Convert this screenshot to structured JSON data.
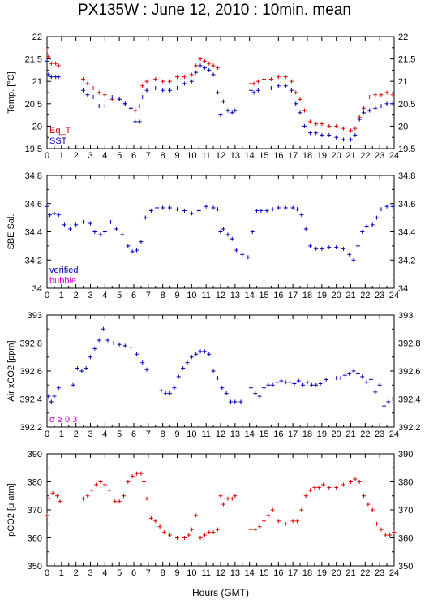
{
  "title": "PX135W : June 12, 2010 : 10min. mean",
  "xlabel": "Hours (GMT)",
  "colors": {
    "red": "#dd0000",
    "blue": "#0000bb",
    "magenta": "#cc00cc",
    "frame": "#000000"
  },
  "chart_data": [
    {
      "type": "scatter",
      "ylabel": "Temp. [°C]",
      "xlim": [
        0,
        24
      ],
      "xticks": [
        "0",
        "1",
        "2",
        "3",
        "4",
        "5",
        "6",
        "7",
        "8",
        "9",
        "10",
        "11",
        "12",
        "13",
        "14",
        "15",
        "16",
        "17",
        "18",
        "19",
        "20",
        "21",
        "22",
        "23",
        "24"
      ],
      "ylim": [
        19.5,
        22
      ],
      "yticks": [
        "19.5",
        "20",
        "20.5",
        "21",
        "21.5",
        "22"
      ],
      "legend": [
        {
          "label": "Eq_T",
          "color": "#dd0000"
        },
        {
          "label": "SST",
          "color": "#0000bb"
        }
      ],
      "series": [
        {
          "name": "Eq_T",
          "color": "#dd0000",
          "x": [
            0.0,
            0.1,
            0.3,
            0.6,
            0.8,
            2.5,
            2.8,
            3.2,
            3.6,
            4.0,
            4.5,
            5.0,
            5.4,
            5.8,
            6.1,
            6.4,
            6.6,
            6.9,
            7.5,
            8.0,
            8.5,
            9.0,
            9.5,
            10.0,
            10.3,
            10.6,
            10.9,
            11.2,
            11.5,
            11.8,
            14.1,
            14.3,
            14.6,
            15.0,
            15.5,
            16.0,
            16.5,
            16.9,
            17.2,
            17.5,
            17.8,
            18.2,
            18.6,
            19.0,
            19.5,
            20.0,
            20.5,
            21.0,
            21.3,
            21.6,
            21.9,
            22.3,
            22.7,
            23.1,
            23.5,
            23.9
          ],
          "y": [
            21.7,
            21.55,
            21.4,
            21.4,
            21.35,
            21.05,
            20.95,
            20.85,
            20.75,
            20.7,
            20.6,
            20.6,
            20.5,
            20.4,
            20.35,
            20.45,
            20.9,
            21.0,
            21.05,
            21.0,
            21.0,
            21.1,
            21.1,
            21.15,
            21.35,
            21.5,
            21.45,
            21.4,
            21.35,
            21.3,
            20.95,
            20.95,
            21.0,
            21.05,
            21.05,
            21.1,
            21.1,
            21.0,
            20.75,
            20.6,
            20.35,
            20.1,
            20.05,
            20.05,
            20.0,
            20.0,
            19.95,
            19.9,
            19.95,
            20.2,
            20.4,
            20.65,
            20.7,
            20.7,
            20.75,
            20.7
          ]
        },
        {
          "name": "SST",
          "color": "#0000bb",
          "x": [
            0.0,
            0.1,
            0.3,
            0.6,
            0.8,
            2.5,
            2.8,
            3.2,
            3.6,
            4.0,
            4.5,
            5.0,
            5.4,
            5.8,
            6.1,
            6.4,
            6.6,
            6.9,
            7.5,
            8.0,
            8.5,
            9.0,
            9.5,
            10.0,
            10.3,
            10.6,
            10.9,
            11.2,
            11.5,
            11.8,
            12.0,
            12.2,
            12.5,
            12.8,
            13.0,
            14.1,
            14.3,
            14.6,
            15.0,
            15.5,
            16.0,
            16.5,
            16.9,
            17.2,
            17.5,
            17.8,
            18.2,
            18.6,
            19.0,
            19.5,
            20.0,
            20.5,
            21.0,
            21.3,
            21.6,
            21.9,
            22.3,
            22.7,
            23.1,
            23.5,
            23.9
          ],
          "y": [
            21.45,
            21.15,
            21.1,
            21.1,
            21.1,
            20.8,
            20.7,
            20.65,
            20.45,
            20.45,
            20.65,
            20.6,
            20.5,
            20.4,
            20.1,
            20.1,
            20.65,
            20.8,
            20.85,
            20.8,
            20.8,
            20.85,
            20.95,
            21.0,
            21.2,
            21.35,
            21.3,
            21.25,
            21.15,
            20.75,
            20.25,
            20.55,
            20.35,
            20.3,
            20.35,
            20.8,
            20.75,
            20.8,
            20.85,
            20.85,
            20.9,
            20.9,
            20.8,
            20.5,
            20.3,
            20.0,
            19.85,
            19.85,
            19.8,
            19.8,
            19.75,
            19.7,
            19.7,
            19.8,
            20.15,
            20.3,
            20.35,
            20.4,
            20.45,
            20.5,
            20.5
          ]
        }
      ]
    },
    {
      "type": "scatter",
      "ylabel": "SBE Sal.",
      "xlim": [
        0,
        24
      ],
      "xticks": [
        "0",
        "1",
        "2",
        "3",
        "4",
        "5",
        "6",
        "7",
        "8",
        "9",
        "10",
        "11",
        "12",
        "13",
        "14",
        "15",
        "16",
        "17",
        "18",
        "19",
        "20",
        "21",
        "22",
        "23",
        "24"
      ],
      "ylim": [
        34,
        34.8
      ],
      "yticks": [
        "34",
        "34.2",
        "34.4",
        "34.6",
        "34.8"
      ],
      "legend": [
        {
          "label": "verified",
          "color": "#0000bb"
        },
        {
          "label": "bubble",
          "color": "#cc00cc"
        }
      ],
      "series": [
        {
          "name": "verified",
          "color": "#0000bb",
          "x": [
            0.0,
            0.2,
            0.5,
            0.8,
            1.2,
            1.6,
            2.0,
            2.5,
            3.0,
            3.3,
            3.7,
            4.0,
            4.4,
            4.8,
            5.2,
            5.6,
            5.9,
            6.2,
            6.5,
            6.8,
            7.2,
            7.6,
            8.0,
            8.5,
            9.0,
            9.5,
            10.0,
            10.5,
            11.0,
            11.5,
            11.8,
            12.0,
            12.2,
            12.5,
            12.8,
            13.1,
            13.5,
            13.9,
            14.2,
            14.5,
            14.8,
            15.2,
            15.6,
            16.0,
            16.5,
            17.0,
            17.3,
            17.6,
            17.9,
            18.2,
            18.6,
            19.0,
            19.5,
            20.0,
            20.5,
            20.9,
            21.2,
            21.5,
            21.8,
            22.1,
            22.5,
            22.8,
            23.1,
            23.5,
            23.9
          ],
          "y": [
            34.58,
            34.52,
            34.53,
            34.52,
            34.45,
            34.42,
            34.45,
            34.47,
            34.46,
            34.4,
            34.38,
            34.4,
            34.47,
            34.42,
            34.38,
            34.3,
            34.26,
            34.27,
            34.33,
            34.5,
            34.55,
            34.57,
            34.57,
            34.57,
            34.56,
            34.55,
            34.53,
            34.55,
            34.58,
            34.57,
            34.56,
            34.4,
            34.42,
            34.38,
            34.35,
            34.27,
            34.24,
            34.22,
            34.4,
            34.55,
            34.55,
            34.55,
            34.56,
            34.57,
            34.57,
            34.57,
            34.56,
            34.52,
            34.42,
            34.3,
            34.28,
            34.28,
            34.29,
            34.29,
            34.28,
            34.24,
            34.2,
            34.3,
            34.4,
            34.44,
            34.45,
            34.5,
            34.56,
            34.58,
            34.58
          ]
        }
      ]
    },
    {
      "type": "scatter",
      "ylabel": "Air xCO2 [ppm]",
      "xlim": [
        0,
        24
      ],
      "xticks": [
        "0",
        "1",
        "2",
        "3",
        "4",
        "5",
        "6",
        "7",
        "8",
        "9",
        "10",
        "11",
        "12",
        "13",
        "14",
        "15",
        "16",
        "17",
        "18",
        "19",
        "20",
        "21",
        "22",
        "23",
        "24"
      ],
      "ylim": [
        392.2,
        393
      ],
      "yticks": [
        "392.2",
        "392.4",
        "392.6",
        "392.8",
        "393"
      ],
      "legend": [
        {
          "label": "σ ≥ 0.3",
          "color": "#cc00cc"
        }
      ],
      "series": [
        {
          "name": "",
          "color": "#0000bb",
          "x": [
            0.1,
            0.3,
            0.5,
            0.8,
            1.8,
            2.1,
            2.4,
            2.7,
            3.0,
            3.3,
            3.6,
            3.9,
            4.2,
            4.6,
            5.0,
            5.4,
            5.8,
            6.2,
            6.6,
            6.9,
            7.9,
            8.2,
            8.5,
            8.8,
            9.1,
            9.4,
            9.7,
            10.0,
            10.3,
            10.6,
            10.9,
            11.2,
            11.5,
            11.8,
            12.1,
            12.4,
            12.7,
            13.0,
            13.4,
            14.1,
            14.4,
            14.7,
            15.0,
            15.3,
            15.6,
            15.9,
            16.2,
            16.5,
            16.8,
            17.1,
            17.4,
            17.7,
            18.0,
            18.3,
            18.6,
            18.9,
            19.3,
            20.0,
            20.3,
            20.6,
            20.9,
            21.2,
            21.5,
            21.8,
            22.1,
            22.4,
            22.7,
            23.0,
            23.3,
            23.6,
            23.9
          ],
          "y": [
            392.42,
            392.38,
            392.42,
            392.48,
            392.5,
            392.62,
            392.6,
            392.62,
            392.7,
            392.76,
            392.82,
            392.9,
            392.82,
            392.8,
            392.79,
            392.78,
            392.77,
            392.72,
            392.66,
            392.61,
            392.46,
            392.44,
            392.44,
            392.48,
            392.56,
            392.62,
            392.66,
            392.7,
            392.72,
            392.74,
            392.74,
            392.72,
            392.6,
            392.55,
            392.48,
            392.44,
            392.38,
            392.38,
            392.38,
            392.48,
            392.44,
            392.42,
            392.48,
            392.5,
            392.5,
            392.52,
            392.53,
            392.52,
            392.52,
            392.51,
            392.53,
            392.5,
            392.52,
            392.5,
            392.5,
            392.51,
            392.54,
            392.55,
            392.55,
            392.57,
            392.58,
            392.6,
            392.58,
            392.56,
            392.52,
            392.54,
            392.45,
            392.5,
            392.35,
            392.38,
            392.4
          ]
        }
      ]
    },
    {
      "type": "scatter",
      "ylabel": "pCO2 [μ atm]",
      "xlim": [
        0,
        24
      ],
      "xticks": [
        "0",
        "1",
        "2",
        "3",
        "4",
        "5",
        "6",
        "7",
        "8",
        "9",
        "10",
        "11",
        "12",
        "13",
        "14",
        "15",
        "16",
        "17",
        "18",
        "19",
        "20",
        "21",
        "22",
        "23",
        "24"
      ],
      "ylim": [
        350,
        390
      ],
      "yticks": [
        "350",
        "360",
        "370",
        "380",
        "390"
      ],
      "series": [
        {
          "name": "",
          "color": "#dd0000",
          "x": [
            0.0,
            0.15,
            0.4,
            0.7,
            0.9,
            2.5,
            2.8,
            3.1,
            3.4,
            3.7,
            4.0,
            4.3,
            4.7,
            5.0,
            5.3,
            5.6,
            5.9,
            6.2,
            6.5,
            6.7,
            6.9,
            7.2,
            7.5,
            7.8,
            8.1,
            8.5,
            9.0,
            9.5,
            9.8,
            10.0,
            10.3,
            10.6,
            10.9,
            11.2,
            11.5,
            11.8,
            12.0,
            12.2,
            12.5,
            12.8,
            13.0,
            14.1,
            14.4,
            14.7,
            15.0,
            15.3,
            15.6,
            16.0,
            16.5,
            17.0,
            17.3,
            17.6,
            17.9,
            18.2,
            18.5,
            18.8,
            19.1,
            19.5,
            20.0,
            20.5,
            21.0,
            21.3,
            21.6,
            21.9,
            22.2,
            22.5,
            22.8,
            23.1,
            23.4,
            23.7,
            24.0
          ],
          "y": [
            368,
            374,
            376,
            375,
            373,
            374,
            375,
            377,
            379,
            380,
            379,
            377,
            373,
            373,
            375,
            380,
            382,
            383,
            383,
            380,
            374,
            367,
            366,
            364,
            362,
            361,
            360,
            360,
            361,
            363,
            368,
            360,
            361,
            362,
            362,
            363,
            375,
            372,
            374,
            374,
            375,
            363,
            363,
            364,
            366,
            368,
            370,
            366,
            365,
            366,
            366,
            370,
            375,
            377,
            378,
            378,
            379,
            378,
            378,
            379,
            380,
            381,
            380,
            375,
            372,
            370,
            365,
            363,
            361,
            361,
            362
          ]
        }
      ]
    }
  ]
}
